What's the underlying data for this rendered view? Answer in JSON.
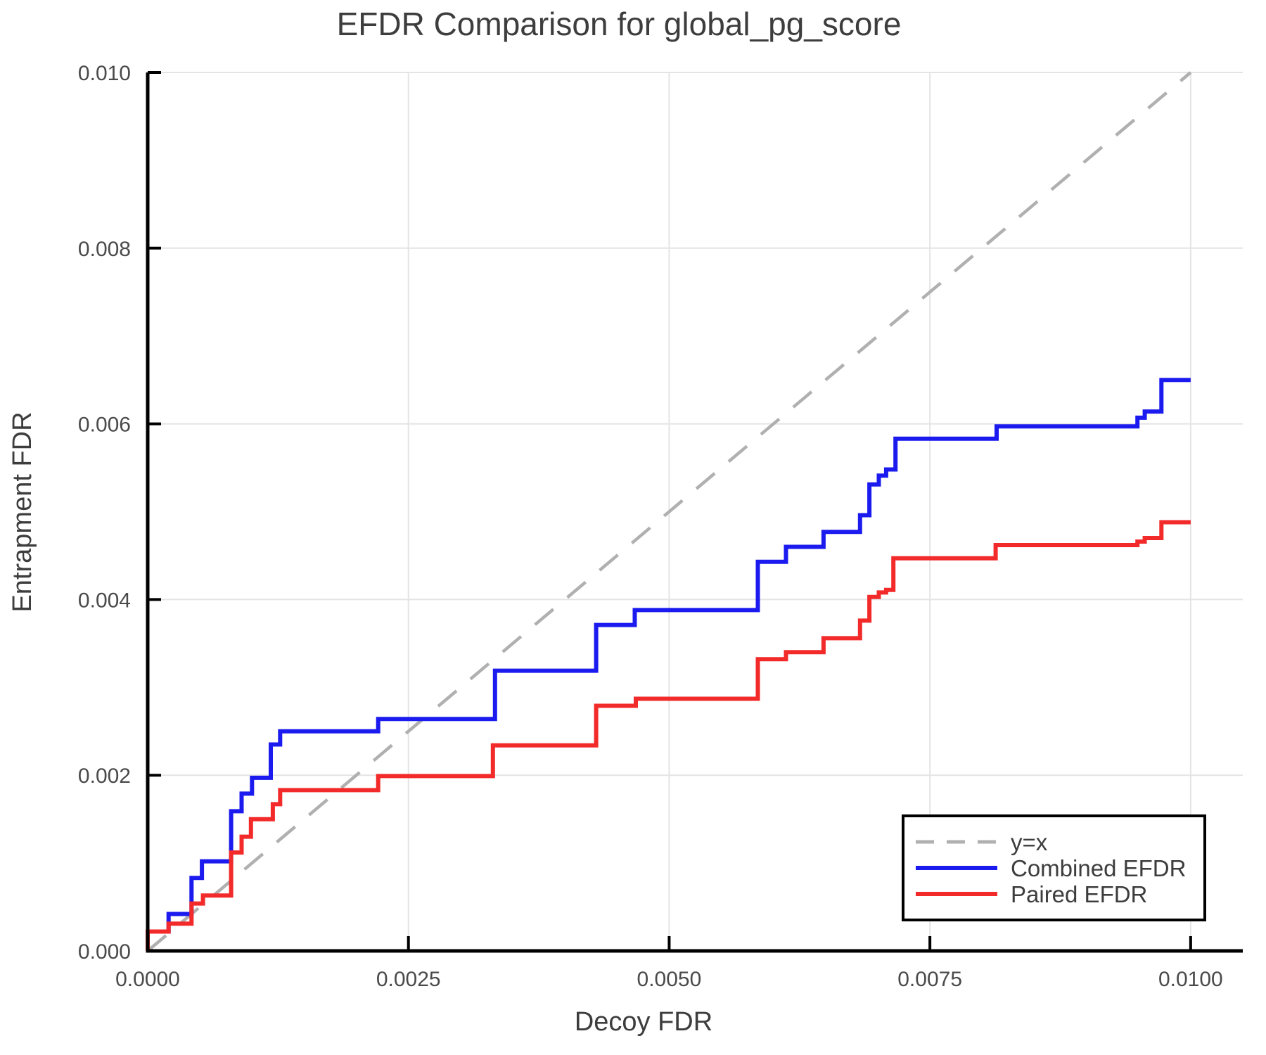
{
  "chart_data": {
    "type": "line",
    "subtype": "step",
    "title": "EFDR Comparison for global_pg_score",
    "xlabel": "Decoy FDR",
    "ylabel": "Entrapment FDR",
    "xlim": [
      0,
      0.0105
    ],
    "ylim": [
      0,
      0.01
    ],
    "grid": true,
    "x_ticks": {
      "values": [
        0.0,
        0.0025,
        0.005,
        0.0075,
        0.01
      ],
      "labels": [
        "0.0000",
        "0.0025",
        "0.0050",
        "0.0075",
        "0.0100"
      ]
    },
    "y_ticks": {
      "values": [
        0.0,
        0.002,
        0.004,
        0.006,
        0.008,
        0.01
      ],
      "labels": [
        "0.000",
        "0.002",
        "0.004",
        "0.006",
        "0.008",
        "0.010"
      ]
    },
    "colors": {
      "combined": "#1b1bef",
      "paired": "#f32a2a",
      "identity": "#b0b0b0",
      "grid": "#e4e4e4",
      "spine": "#000000"
    },
    "reference_line": {
      "label": "y=x",
      "from": [
        0,
        0
      ],
      "to": [
        0.01,
        0.01
      ],
      "color": "#b0b0b0",
      "dashed": true
    },
    "legend": {
      "position": "bottom-right",
      "entries": [
        {
          "label": "y=x",
          "color": "#b0b0b0",
          "dashed": true
        },
        {
          "label": "Combined EFDR",
          "color": "#1b1bef",
          "dashed": false
        },
        {
          "label": "Paired EFDR",
          "color": "#f32a2a",
          "dashed": false
        }
      ]
    },
    "series": [
      {
        "name": "Combined EFDR",
        "color": "#1b1bef",
        "points": [
          [
            0.0,
            0.0
          ],
          [
            0.0,
            0.00022
          ],
          [
            0.0002,
            0.00042
          ],
          [
            0.00042,
            0.00083
          ],
          [
            0.00052,
            0.00102
          ],
          [
            0.0008,
            0.00159
          ],
          [
            0.0009,
            0.00179
          ],
          [
            0.001,
            0.00197
          ],
          [
            0.00118,
            0.00235
          ],
          [
            0.00127,
            0.0025
          ],
          [
            0.00221,
            0.00264
          ],
          [
            0.00333,
            0.00319
          ],
          [
            0.0043,
            0.00371
          ],
          [
            0.00467,
            0.00388
          ],
          [
            0.00585,
            0.00443
          ],
          [
            0.00612,
            0.0046
          ],
          [
            0.00648,
            0.00477
          ],
          [
            0.00683,
            0.00496
          ],
          [
            0.00692,
            0.00531
          ],
          [
            0.00701,
            0.00541
          ],
          [
            0.00708,
            0.00548
          ],
          [
            0.00717,
            0.00583
          ],
          [
            0.00814,
            0.00597
          ],
          [
            0.00949,
            0.00607
          ],
          [
            0.00956,
            0.00614
          ],
          [
            0.00972,
            0.0065
          ],
          [
            0.01,
            0.0065
          ]
        ]
      },
      {
        "name": "Paired EFDR",
        "color": "#f32a2a",
        "points": [
          [
            0.0,
            0.0
          ],
          [
            0.0,
            0.00022
          ],
          [
            0.0002,
            0.00031
          ],
          [
            0.00042,
            0.00054
          ],
          [
            0.00053,
            0.00063
          ],
          [
            0.0008,
            0.00112
          ],
          [
            0.0009,
            0.0013
          ],
          [
            0.00099,
            0.0015
          ],
          [
            0.0012,
            0.00167
          ],
          [
            0.00127,
            0.00183
          ],
          [
            0.00221,
            0.00199
          ],
          [
            0.00331,
            0.00234
          ],
          [
            0.0043,
            0.00279
          ],
          [
            0.00468,
            0.00287
          ],
          [
            0.00585,
            0.00332
          ],
          [
            0.00612,
            0.0034
          ],
          [
            0.00648,
            0.00356
          ],
          [
            0.00683,
            0.00376
          ],
          [
            0.00692,
            0.00403
          ],
          [
            0.00701,
            0.00408
          ],
          [
            0.00708,
            0.00411
          ],
          [
            0.00715,
            0.00447
          ],
          [
            0.00813,
            0.00462
          ],
          [
            0.00949,
            0.00466
          ],
          [
            0.00956,
            0.0047
          ],
          [
            0.00972,
            0.00488
          ],
          [
            0.01,
            0.00488
          ]
        ]
      }
    ]
  }
}
